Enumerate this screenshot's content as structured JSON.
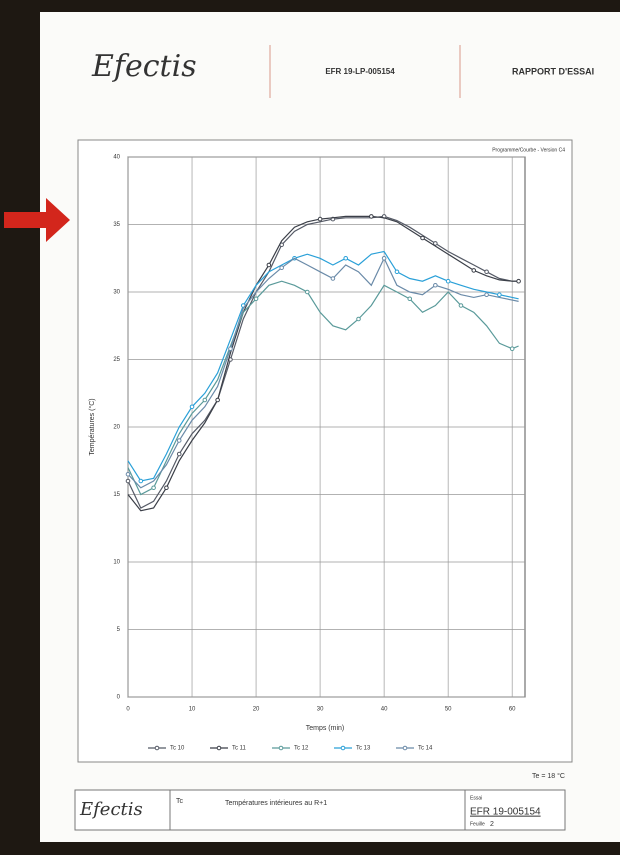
{
  "header": {
    "logo": "Efectis",
    "reference": "EFR 19-LP-005154",
    "title": "RAPPORT D'ESSAI"
  },
  "chart_data": {
    "type": "line",
    "title": "Programme/Courbe - Version C4",
    "x_label": "Temps (min)",
    "y_label": "Températures (°C)",
    "x": [
      0,
      2,
      4,
      6,
      8,
      10,
      12,
      14,
      16,
      18,
      20,
      22,
      24,
      26,
      28,
      30,
      32,
      34,
      36,
      38,
      40,
      42,
      44,
      46,
      48,
      50,
      52,
      54,
      56,
      58,
      60,
      61
    ],
    "xlim": [
      0,
      62
    ],
    "xticks": [
      0,
      10,
      20,
      30,
      40,
      50,
      60
    ],
    "ylim": [
      0,
      40
    ],
    "yticks": [
      0,
      5,
      10,
      15,
      20,
      25,
      30,
      35,
      40
    ],
    "grid": true,
    "series": [
      {
        "name": "Tc 10",
        "color": "#555a66",
        "values": [
          16,
          14,
          14.5,
          16,
          18,
          19.5,
          20.5,
          22,
          25,
          28,
          30,
          31.5,
          33.5,
          34.5,
          35,
          35.2,
          35.4,
          35.5,
          35.5,
          35.5,
          35.6,
          35.3,
          34.8,
          34.2,
          33.6,
          33,
          32.5,
          32,
          31.5,
          31,
          30.8,
          30.8
        ]
      },
      {
        "name": "Tc 11",
        "color": "#3b3f48",
        "values": [
          15,
          13.8,
          14,
          15.5,
          17.5,
          19,
          20.3,
          22,
          25.5,
          28.5,
          30.5,
          32,
          33.8,
          34.8,
          35.2,
          35.4,
          35.5,
          35.6,
          35.6,
          35.6,
          35.5,
          35.2,
          34.6,
          34,
          33.4,
          32.8,
          32.2,
          31.6,
          31.2,
          30.9,
          30.8,
          30.8
        ]
      },
      {
        "name": "Tc 12",
        "color": "#5a9a9a",
        "values": [
          17,
          15,
          15.5,
          17.5,
          19.5,
          21,
          22,
          23.5,
          26,
          28.5,
          29.5,
          30.5,
          30.8,
          30.5,
          30,
          28.5,
          27.5,
          27.2,
          28,
          29,
          30.5,
          30,
          29.5,
          28.5,
          29,
          30,
          29,
          28.5,
          27.5,
          26.2,
          25.8,
          26
        ]
      },
      {
        "name": "Tc 13",
        "color": "#2aa0d8",
        "values": [
          17.5,
          16,
          16.2,
          18,
          20,
          21.5,
          22.5,
          24,
          26.5,
          29,
          30.5,
          31.5,
          32,
          32.5,
          32.8,
          32.5,
          32,
          32.5,
          32,
          32.8,
          33,
          31.5,
          31,
          30.8,
          31.2,
          30.8,
          30.5,
          30.2,
          30,
          29.8,
          29.6,
          29.5
        ]
      },
      {
        "name": "Tc 14",
        "color": "#6a8aa8",
        "values": [
          16.5,
          15.5,
          16,
          17.2,
          19,
          20.5,
          21.5,
          23,
          25.8,
          28.8,
          30,
          31,
          31.8,
          32.5,
          32,
          31.5,
          31,
          32,
          31.5,
          30.5,
          32.5,
          30.5,
          30,
          29.8,
          30.5,
          30.2,
          29.8,
          29.6,
          29.8,
          29.6,
          29.4,
          29.3
        ]
      }
    ],
    "annotation": "Te = 18 °C"
  },
  "footer": {
    "logo": "Efectis",
    "code": "Tc",
    "caption": "Températures intérieures au R+1",
    "test_label": "Essai",
    "test_number": "EFR 19-005154",
    "page_label": "Feuille",
    "page_number": "2"
  }
}
